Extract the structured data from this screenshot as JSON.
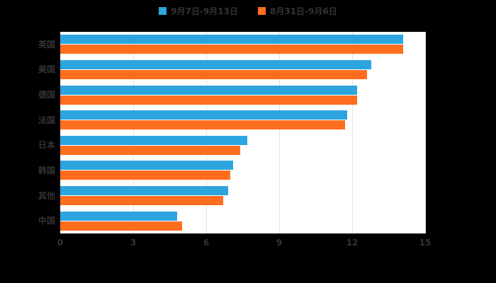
{
  "legend": {
    "series1": "9月7日-9月13日",
    "series2": "8月31日-9月6日"
  },
  "colors": {
    "series1": "#2CA5DE",
    "series2": "#FF6D1F",
    "background": "#000000",
    "plot_background": "#FFFFFF",
    "grid": "#E2E2E2",
    "text": "#333333"
  },
  "chart_data": {
    "type": "bar",
    "orientation": "horizontal",
    "title": "",
    "xlabel": "",
    "ylabel": "",
    "categories": [
      "英国",
      "美国",
      "德国",
      "法国",
      "日本",
      "韩国",
      "其他",
      "中国"
    ],
    "series": [
      {
        "name": "9月7日-9月13日",
        "color": "#2CA5DE",
        "values": [
          14.1,
          12.8,
          12.2,
          11.8,
          7.7,
          7.1,
          6.9,
          4.8
        ]
      },
      {
        "name": "8月31日-9月6日",
        "color": "#FF6D1F",
        "values": [
          14.1,
          12.6,
          12.2,
          11.7,
          7.4,
          7.0,
          6.7,
          5.0
        ]
      }
    ],
    "xlim": [
      0,
      15
    ],
    "xticks": [
      0,
      3,
      6,
      9,
      12,
      15
    ],
    "grid": true,
    "legend_position": "top"
  }
}
